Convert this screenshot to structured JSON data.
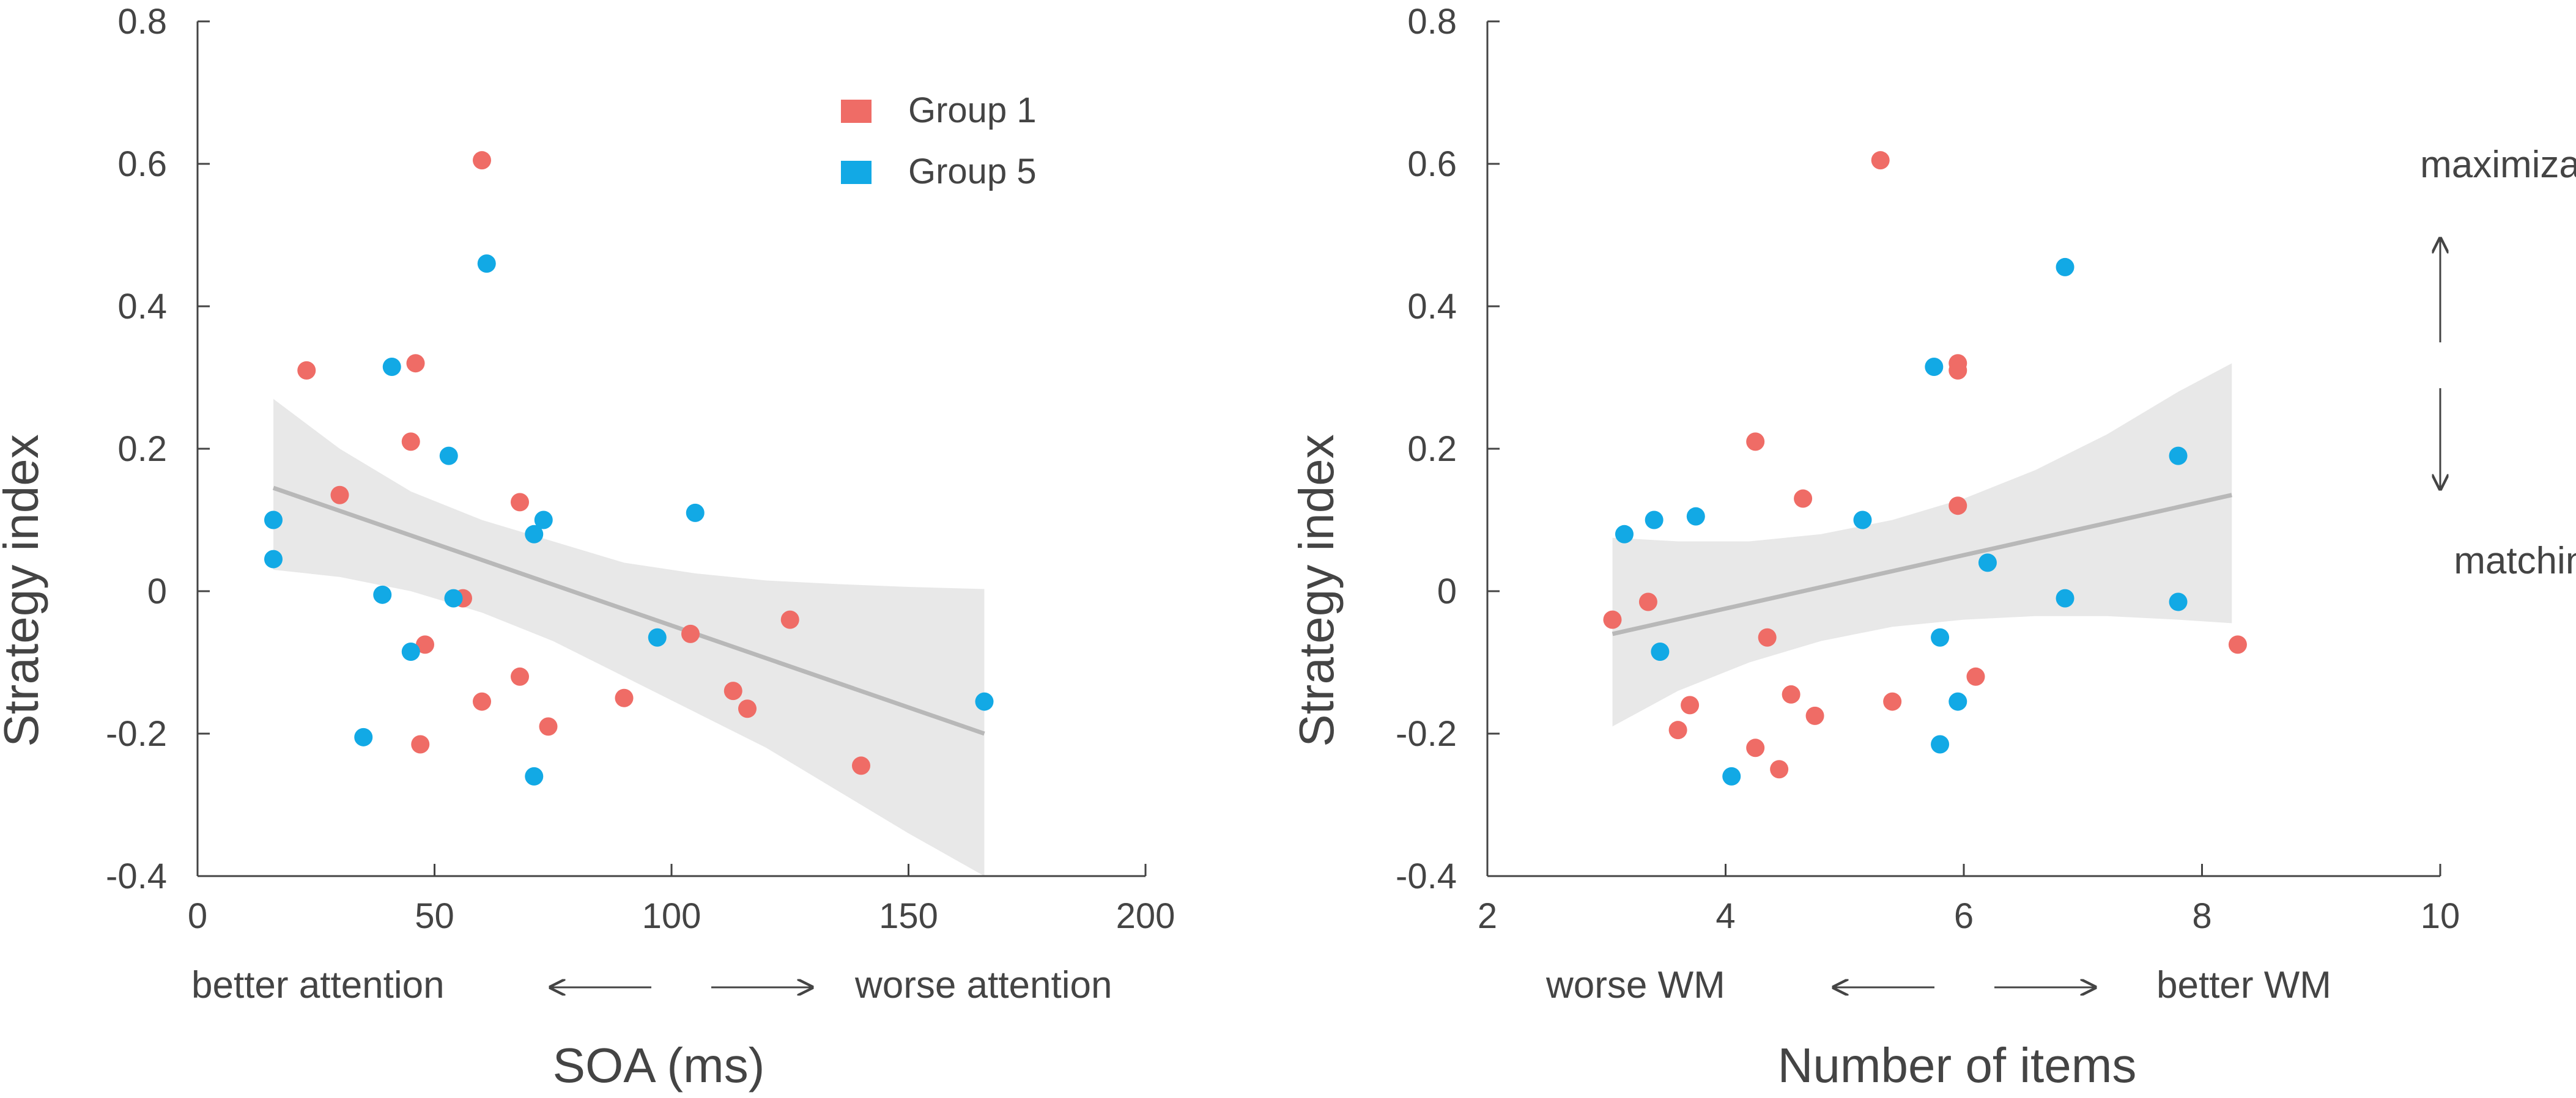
{
  "colors": {
    "group1": "#EF6C66",
    "group5": "#12A9E5",
    "band": "#E8E8E8",
    "fit": "#B8B8B8",
    "axis": "#444444"
  },
  "legend": {
    "items": [
      {
        "label": "Group 1",
        "color": "#EF6C66"
      },
      {
        "label": "Group 5",
        "color": "#12A9E5"
      }
    ]
  },
  "chart_data": [
    {
      "type": "scatter",
      "title": "",
      "xlabel": "SOA (ms)",
      "ylabel": "Strategy index",
      "xlim": [
        0,
        200
      ],
      "ylim": [
        -0.4,
        0.8
      ],
      "xticks": [
        "0",
        "50",
        "100",
        "150",
        "200"
      ],
      "yticks": [
        "-0.4",
        "-0.2",
        "0",
        "0.2",
        "0.4",
        "0.6",
        "0.8"
      ],
      "annotations": {
        "left": "better attention",
        "right": "worse attention"
      },
      "fit": {
        "x": [
          16,
          166
        ],
        "y": [
          0.145,
          -0.2
        ]
      },
      "ci_band": {
        "x": [
          16,
          30,
          45,
          60,
          75,
          90,
          105,
          120,
          135,
          150,
          166
        ],
        "lower": [
          0.03,
          0.02,
          0.0,
          -0.03,
          -0.07,
          -0.12,
          -0.17,
          -0.22,
          -0.28,
          -0.34,
          -0.4
        ],
        "upper": [
          0.27,
          0.2,
          0.14,
          0.1,
          0.07,
          0.04,
          0.025,
          0.015,
          0.01,
          0.006,
          0.003
        ]
      },
      "series": [
        {
          "name": "Group 1",
          "points": [
            [
              23,
              0.31
            ],
            [
              30,
              0.135
            ],
            [
              46,
              0.32
            ],
            [
              45,
              0.21
            ],
            [
              60,
              0.605
            ],
            [
              68,
              0.125
            ],
            [
              56,
              -0.01
            ],
            [
              48,
              -0.075
            ],
            [
              47,
              -0.215
            ],
            [
              60,
              -0.155
            ],
            [
              68,
              -0.12
            ],
            [
              74,
              -0.19
            ],
            [
              90,
              -0.15
            ],
            [
              104,
              -0.06
            ],
            [
              113,
              -0.14
            ],
            [
              116,
              -0.165
            ],
            [
              125,
              -0.04
            ],
            [
              140,
              -0.245
            ]
          ]
        },
        {
          "name": "Group 5",
          "points": [
            [
              16,
              0.1
            ],
            [
              16,
              0.045
            ],
            [
              35,
              -0.205
            ],
            [
              39,
              -0.005
            ],
            [
              41,
              0.315
            ],
            [
              45,
              -0.085
            ],
            [
              53,
              0.19
            ],
            [
              54,
              -0.01
            ],
            [
              61,
              0.46
            ],
            [
              71,
              0.08
            ],
            [
              73,
              0.1
            ],
            [
              71,
              -0.26
            ],
            [
              97,
              -0.065
            ],
            [
              105,
              0.11
            ],
            [
              166,
              -0.155
            ]
          ]
        }
      ]
    },
    {
      "type": "scatter",
      "title": "",
      "xlabel": "Number of items",
      "ylabel": "Strategy index",
      "xlim": [
        2,
        10
      ],
      "ylim": [
        -0.4,
        0.8
      ],
      "xticks": [
        "2",
        "4",
        "6",
        "8",
        "10"
      ],
      "yticks": [
        "-0.4",
        "-0.2",
        "0",
        "0.2",
        "0.4",
        "0.6",
        "0.8"
      ],
      "annotations": {
        "left": "worse WM",
        "right": "better WM",
        "top": "maximization",
        "bottom": "matching"
      },
      "fit": {
        "x": [
          3.05,
          8.25
        ],
        "y": [
          -0.06,
          0.135
        ]
      },
      "ci_band": {
        "x": [
          3.05,
          3.6,
          4.2,
          4.8,
          5.4,
          6.0,
          6.6,
          7.2,
          7.8,
          8.25
        ],
        "lower": [
          -0.19,
          -0.14,
          -0.1,
          -0.07,
          -0.05,
          -0.04,
          -0.035,
          -0.035,
          -0.04,
          -0.045
        ],
        "upper": [
          0.075,
          0.07,
          0.07,
          0.08,
          0.1,
          0.13,
          0.17,
          0.22,
          0.28,
          0.32
        ]
      },
      "series": [
        {
          "name": "Group 1",
          "points": [
            [
              3.05,
              -0.04
            ],
            [
              3.35,
              -0.015
            ],
            [
              3.6,
              -0.195
            ],
            [
              3.7,
              -0.16
            ],
            [
              4.25,
              0.21
            ],
            [
              4.25,
              -0.22
            ],
            [
              4.35,
              -0.065
            ],
            [
              4.45,
              -0.25
            ],
            [
              4.55,
              -0.145
            ],
            [
              4.65,
              0.13
            ],
            [
              4.75,
              -0.175
            ],
            [
              5.3,
              0.605
            ],
            [
              5.4,
              -0.155
            ],
            [
              5.95,
              0.32
            ],
            [
              5.95,
              0.31
            ],
            [
              5.95,
              0.12
            ],
            [
              6.1,
              -0.12
            ],
            [
              8.3,
              -0.075
            ]
          ]
        },
        {
          "name": "Group 5",
          "points": [
            [
              3.15,
              0.08
            ],
            [
              3.4,
              0.1
            ],
            [
              3.45,
              -0.085
            ],
            [
              3.75,
              0.105
            ],
            [
              4.05,
              -0.26
            ],
            [
              5.15,
              0.1
            ],
            [
              5.75,
              0.315
            ],
            [
              5.8,
              -0.065
            ],
            [
              5.8,
              -0.215
            ],
            [
              5.95,
              -0.155
            ],
            [
              6.2,
              0.04
            ],
            [
              6.85,
              0.455
            ],
            [
              6.85,
              -0.01
            ],
            [
              7.8,
              0.19
            ],
            [
              7.8,
              -0.015
            ]
          ]
        }
      ]
    }
  ]
}
